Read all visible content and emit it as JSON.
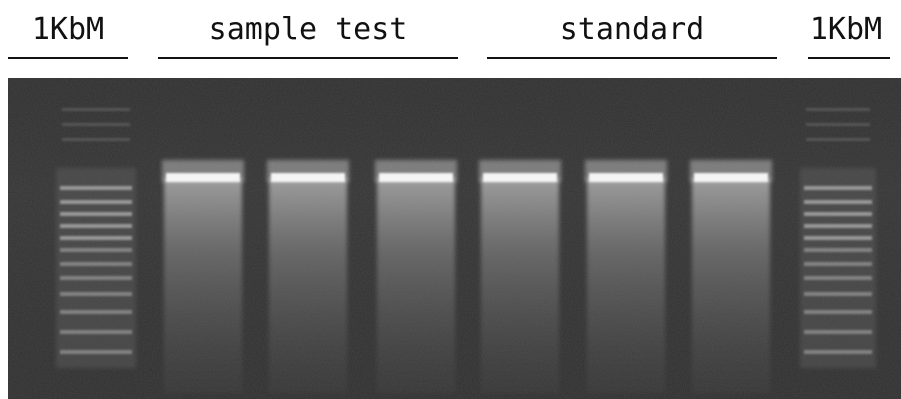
{
  "labels": {
    "marker_left": "1KbM",
    "sample_group": "sample test",
    "standard_group": "standard",
    "marker_right": "1KbM"
  },
  "gel": {
    "background_color": "#2c2c2c",
    "band_color": "#f5f5f5",
    "lanes": [
      {
        "type": "marker"
      },
      {
        "type": "sample"
      },
      {
        "type": "sample"
      },
      {
        "type": "sample"
      },
      {
        "type": "standard"
      },
      {
        "type": "standard"
      },
      {
        "type": "standard"
      },
      {
        "type": "marker"
      }
    ]
  }
}
